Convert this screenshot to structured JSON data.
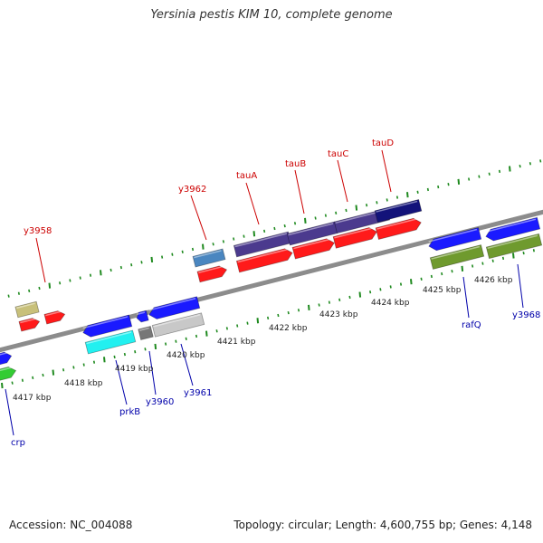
{
  "title": "Yersinia pestis KIM 10, complete genome",
  "accession_label": "Accession: NC_004088",
  "summary_label": "Topology: circular; Length: 4,600,755 bp; Genes: 4,148",
  "colors": {
    "backbone": "#8c8c8c",
    "tick": "#1f8a1f",
    "label_top": "#cc0000",
    "label_bottom": "#0000aa"
  },
  "kbp_labels": [
    "4417 kbp",
    "4418 kbp",
    "4419 kbp",
    "4420 kbp",
    "4421 kbp",
    "4422 kbp",
    "4423 kbp",
    "4424 kbp",
    "4425 kbp",
    "4426 kbp"
  ],
  "gene_labels_top": [
    "y3958",
    "y3962",
    "tauA",
    "tauB",
    "tauC",
    "tauD"
  ],
  "gene_labels_bottom": [
    "crp",
    "prkB",
    "y3960",
    "y3961",
    "rafQ",
    "y3968"
  ]
}
